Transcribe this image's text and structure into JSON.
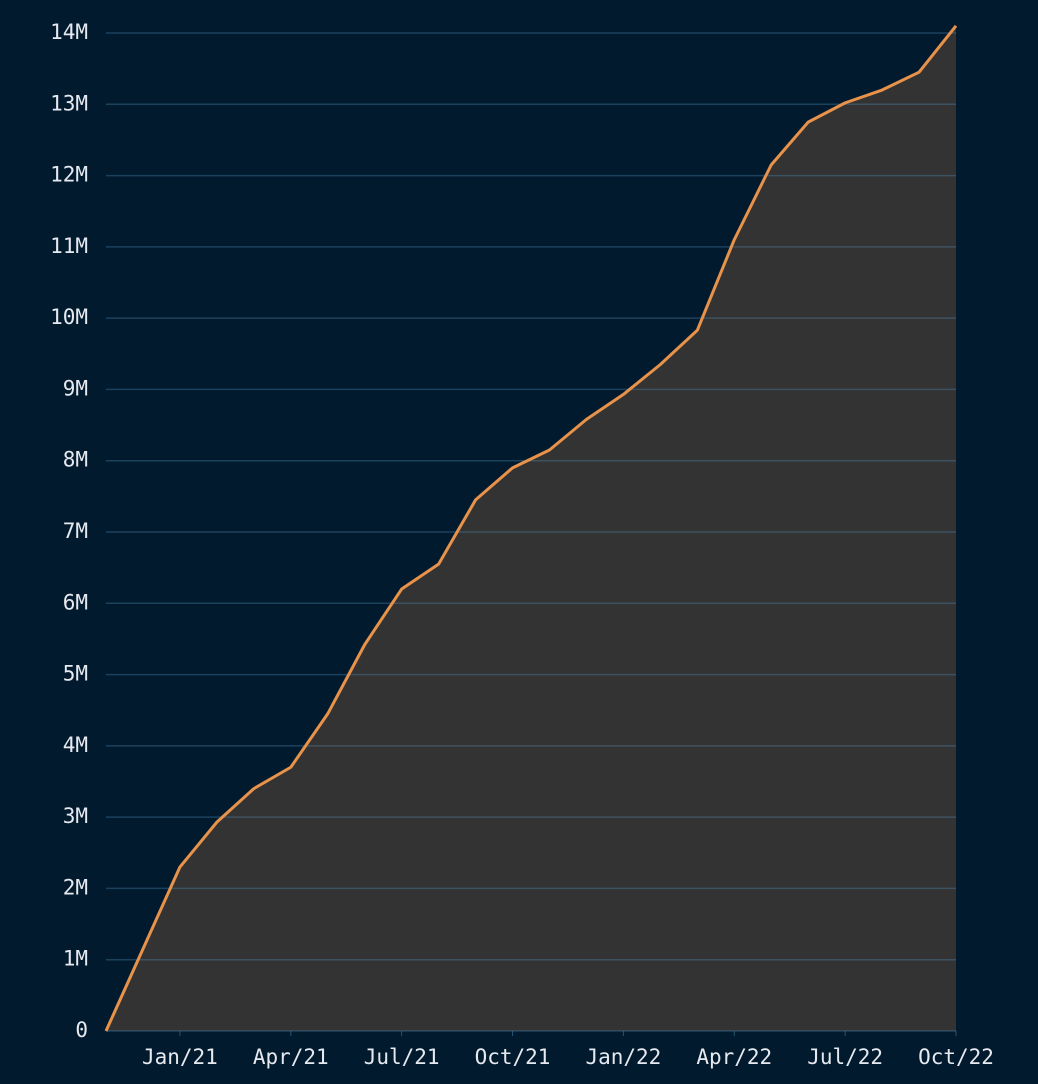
{
  "chart_data": {
    "type": "area",
    "x": [
      "2020-11",
      "2020-12",
      "2021-01",
      "2021-02",
      "2021-03",
      "2021-04",
      "2021-05",
      "2021-06",
      "2021-07",
      "2021-08",
      "2021-09",
      "2021-10",
      "2021-11",
      "2021-12",
      "2022-01",
      "2022-02",
      "2022-03",
      "2022-04",
      "2022-05",
      "2022-06",
      "2022-07",
      "2022-08",
      "2022-09",
      "2022-10"
    ],
    "values": [
      0,
      1150000,
      2300000,
      2930000,
      3400000,
      3700000,
      4450000,
      5420000,
      6200000,
      6550000,
      7450000,
      7900000,
      8150000,
      8580000,
      8930000,
      9350000,
      9830000,
      11100000,
      12150000,
      12750000,
      13020000,
      13200000,
      13450000,
      14100000
    ],
    "line_color": "#e8924a",
    "fill_color": "#333333",
    "xlim": [
      "2020-11",
      "2022-10"
    ],
    "xticks": [
      {
        "value": "2021-01",
        "label": "Jan/21"
      },
      {
        "value": "2021-04",
        "label": "Apr/21"
      },
      {
        "value": "2021-07",
        "label": "Jul/21"
      },
      {
        "value": "2021-10",
        "label": "Oct/21"
      },
      {
        "value": "2022-01",
        "label": "Jan/22"
      },
      {
        "value": "2022-04",
        "label": "Apr/22"
      },
      {
        "value": "2022-07",
        "label": "Jul/22"
      },
      {
        "value": "2022-10",
        "label": "Oct/22"
      }
    ],
    "ylim": [
      0,
      14000000
    ],
    "yticks": [
      0,
      {
        "value": 1000000,
        "label": "1M"
      },
      {
        "value": 2000000,
        "label": "2M"
      },
      {
        "value": 3000000,
        "label": "3M"
      },
      {
        "value": 4000000,
        "label": "4M"
      },
      {
        "value": 5000000,
        "label": "5M"
      },
      {
        "value": 6000000,
        "label": "6M"
      },
      {
        "value": 7000000,
        "label": "7M"
      },
      {
        "value": 8000000,
        "label": "8M"
      },
      {
        "value": 9000000,
        "label": "9M"
      },
      {
        "value": 10000000,
        "label": "10M"
      },
      {
        "value": 11000000,
        "label": "11M"
      },
      {
        "value": 12000000,
        "label": "12M"
      },
      {
        "value": 13000000,
        "label": "13M"
      },
      {
        "value": 14000000,
        "label": "14M"
      }
    ],
    "grid": true
  }
}
